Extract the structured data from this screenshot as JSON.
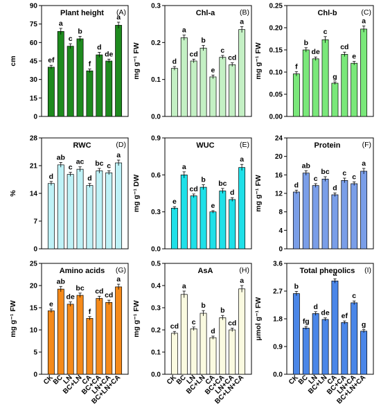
{
  "categories": [
    "CK",
    "BC",
    "LN",
    "BC+LN",
    "CA",
    "BC+CA",
    "LN+CA",
    "BC+LN+CA"
  ],
  "chart_data": [
    {
      "type": "bar",
      "panel_label": "(A)",
      "title": "Plant height",
      "ylabel": "cm",
      "ylim": [
        0,
        90
      ],
      "yticks": [
        "0",
        "15",
        "30",
        "45",
        "60",
        "75",
        "90"
      ],
      "color": "#1e8a1e",
      "values": [
        40,
        69,
        57,
        63,
        37,
        50,
        45,
        74
      ],
      "errors": [
        1.5,
        2.5,
        2,
        2,
        1.5,
        2,
        1.5,
        2.5
      ],
      "letters": [
        "ef",
        "a",
        "c",
        "b",
        "f",
        "d",
        "de",
        "a"
      ]
    },
    {
      "type": "bar",
      "panel_label": "(B)",
      "title": "Chl-a",
      "ylabel": "mg g⁻¹ FW",
      "ylim": [
        0,
        0.3
      ],
      "yticks": [
        "0.0",
        "0.1",
        "0.2",
        "0.3"
      ],
      "color": "#c4f0c4",
      "values": [
        0.13,
        0.213,
        0.15,
        0.185,
        0.107,
        0.16,
        0.14,
        0.235
      ],
      "errors": [
        0.005,
        0.007,
        0.005,
        0.007,
        0.005,
        0.005,
        0.005,
        0.008
      ],
      "letters": [
        "d",
        "a",
        "cd",
        "b",
        "e",
        "c",
        "cd",
        "a"
      ]
    },
    {
      "type": "bar",
      "panel_label": "(C)",
      "title": "Chl-b",
      "ylabel": "mg g⁻¹ FW",
      "ylim": [
        0,
        0.25
      ],
      "yticks": [
        "0.00",
        "0.05",
        "0.10",
        "0.15",
        "0.20",
        "0.25"
      ],
      "color": "#7ae87a",
      "values": [
        0.096,
        0.15,
        0.13,
        0.173,
        0.075,
        0.14,
        0.12,
        0.197
      ],
      "errors": [
        0.005,
        0.005,
        0.004,
        0.007,
        0.003,
        0.005,
        0.004,
        0.007
      ],
      "letters": [
        "f",
        "b",
        "de",
        "c",
        "g",
        "cd",
        "e",
        "a"
      ]
    },
    {
      "type": "bar",
      "panel_label": "(D)",
      "title": "RWC",
      "ylabel": "%",
      "ylim": [
        0,
        28
      ],
      "yticks": [
        "0",
        "7",
        "14",
        "21",
        "28"
      ],
      "color": "#bff2f7",
      "values": [
        16.5,
        21.2,
        18.8,
        20.1,
        16.0,
        19.7,
        19.2,
        21.7
      ],
      "errors": [
        0.5,
        0.6,
        0.5,
        0.6,
        0.5,
        0.6,
        0.5,
        0.7
      ],
      "letters": [
        "d",
        "ab",
        "c",
        "ac",
        "d",
        "bc",
        "c",
        "a"
      ]
    },
    {
      "type": "bar",
      "panel_label": "(E)",
      "title": "WUC",
      "ylabel": "mg g⁻¹ DW",
      "ylim": [
        0,
        0.9
      ],
      "yticks": [
        "0.0",
        "0.3",
        "0.6",
        "0.9"
      ],
      "color": "#1fe0e8",
      "values": [
        0.33,
        0.6,
        0.43,
        0.5,
        0.3,
        0.47,
        0.4,
        0.66
      ],
      "errors": [
        0.012,
        0.025,
        0.015,
        0.02,
        0.01,
        0.02,
        0.015,
        0.025
      ],
      "letters": [
        "e",
        "a",
        "cd",
        "b",
        "e",
        "bc",
        "d",
        "a"
      ]
    },
    {
      "type": "bar",
      "panel_label": "(F)",
      "title": "Protein",
      "ylabel": "mg g⁻¹ FW",
      "ylim": [
        0,
        24
      ],
      "yticks": [
        "0",
        "4",
        "8",
        "12",
        "16",
        "20",
        "24"
      ],
      "color": "#7a9ee8",
      "values": [
        12.3,
        16.4,
        13.7,
        15.1,
        11.7,
        14.8,
        14.1,
        16.8
      ],
      "errors": [
        0.4,
        0.5,
        0.4,
        0.5,
        0.4,
        0.5,
        0.4,
        0.6
      ],
      "letters": [
        "d",
        "ab",
        "c",
        "bc",
        "d",
        "c",
        "c",
        "a"
      ]
    },
    {
      "type": "bar",
      "panel_label": "(G)",
      "title": "Amino acids",
      "ylabel": "mg g⁻¹ FW",
      "ylim": [
        0,
        25
      ],
      "yticks": [
        "0",
        "5",
        "10",
        "15",
        "20",
        "25"
      ],
      "color": "#f58a1a",
      "values": [
        14.3,
        19.2,
        15.8,
        17.8,
        12.6,
        17.1,
        16.2,
        19.7
      ],
      "errors": [
        0.4,
        0.6,
        0.5,
        0.5,
        0.4,
        0.5,
        0.5,
        0.6
      ],
      "letters": [
        "e",
        "ab",
        "de",
        "bc",
        "f",
        "cd",
        "cd",
        "a"
      ]
    },
    {
      "type": "bar",
      "panel_label": "(H)",
      "title": "AsA",
      "ylabel": "mg g⁻¹ FW",
      "ylim": [
        0,
        0.5
      ],
      "yticks": [
        "0.0",
        "0.1",
        "0.2",
        "0.3",
        "0.4",
        "0.5"
      ],
      "color": "#fafae0",
      "values": [
        0.185,
        0.36,
        0.205,
        0.275,
        0.165,
        0.255,
        0.2,
        0.385
      ],
      "errors": [
        0.008,
        0.015,
        0.008,
        0.012,
        0.007,
        0.01,
        0.008,
        0.015
      ],
      "letters": [
        "cd",
        "a",
        "c",
        "b",
        "d",
        "b",
        "cd",
        "a"
      ]
    },
    {
      "type": "bar",
      "panel_label": "(I)",
      "title": "Total phenolics",
      "ylabel": "μmol g⁻¹ FW",
      "ylim": [
        0,
        3.6
      ],
      "yticks": [
        "0.0",
        "0.9",
        "1.8",
        "2.7",
        "3.6"
      ],
      "color": "#4a86e8",
      "values": [
        2.62,
        1.5,
        1.97,
        1.78,
        3.03,
        1.68,
        2.32,
        1.4
      ],
      "errors": [
        0.07,
        0.05,
        0.06,
        0.05,
        0.07,
        0.05,
        0.06,
        0.05
      ],
      "letters": [
        "b",
        "fg",
        "d",
        "de",
        "a",
        "ef",
        "c",
        "g"
      ]
    }
  ]
}
